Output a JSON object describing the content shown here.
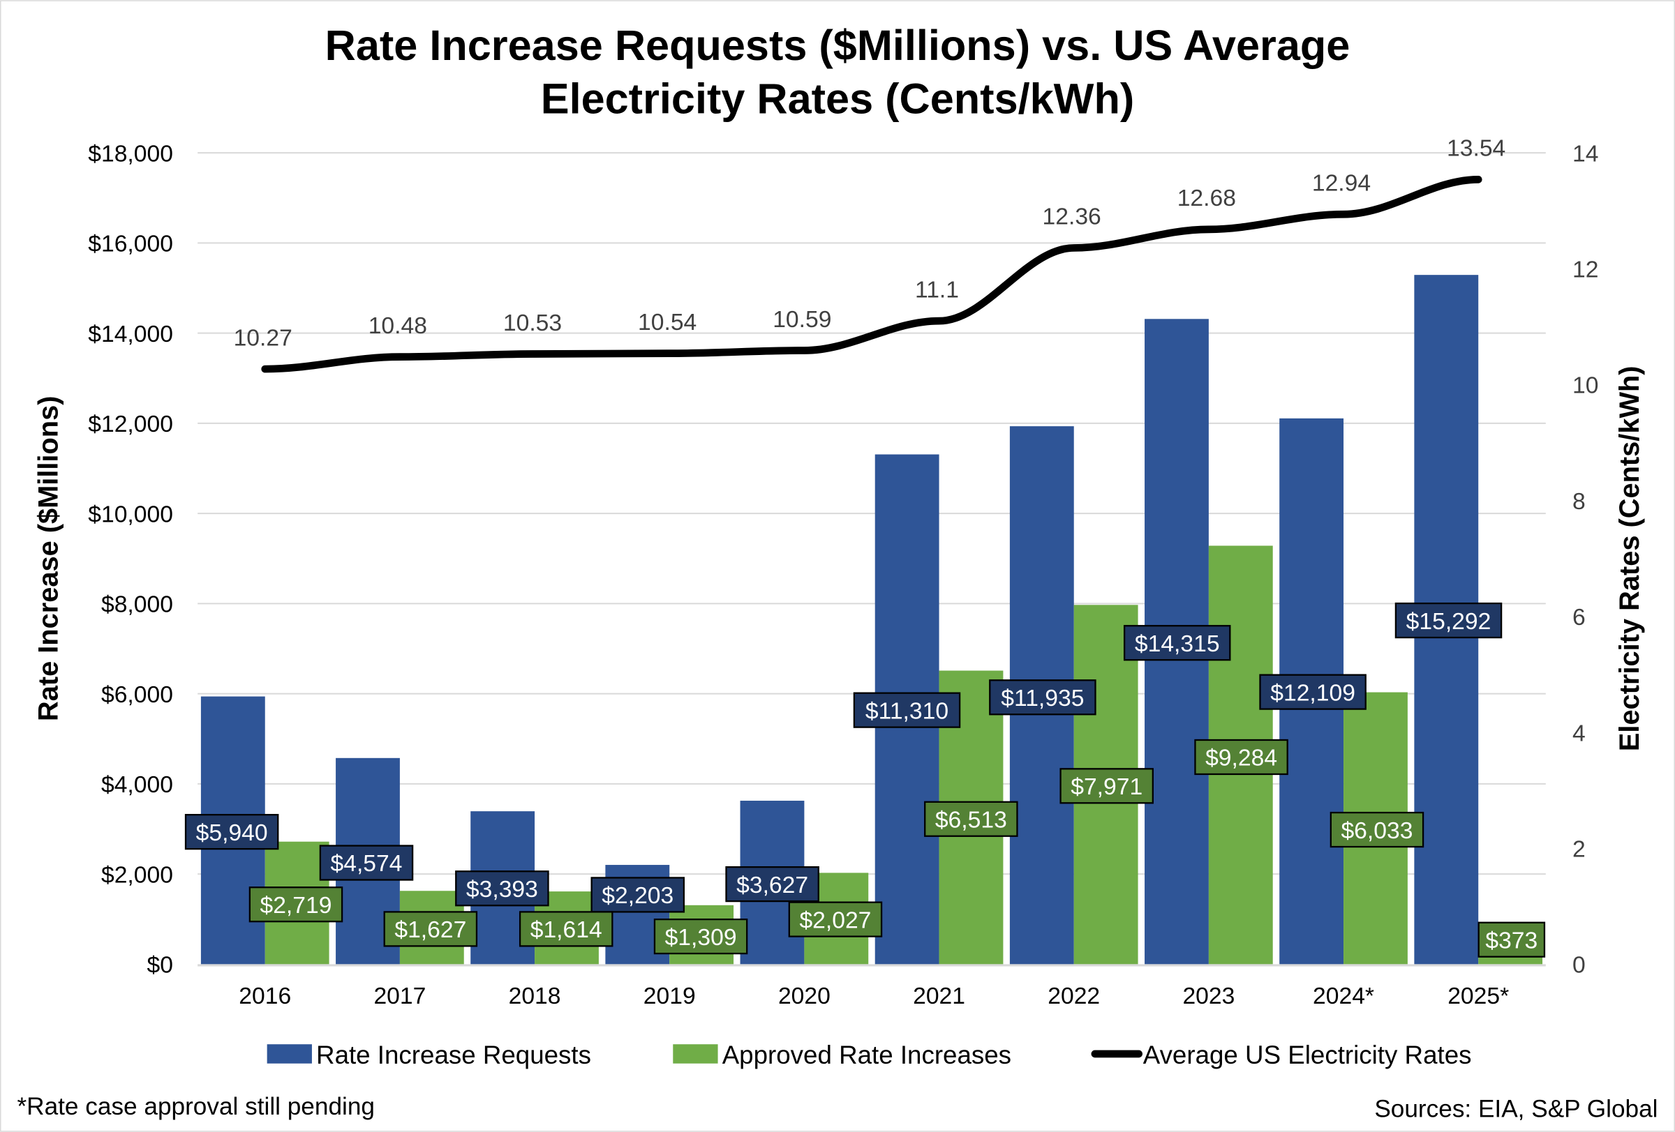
{
  "chart_data": {
    "type": "bar",
    "title_lines": [
      "Rate Increase Requests ($Millions) vs. US Average",
      "Electricity Rates (Cents/kWh)"
    ],
    "categories": [
      "2016",
      "2017",
      "2018",
      "2019",
      "2020",
      "2021",
      "2022",
      "2023",
      "2024*",
      "2025*"
    ],
    "series": [
      {
        "name": "Rate Increase Requests",
        "type": "bar",
        "axis": "left",
        "color": "#2F5597",
        "values": [
          5940,
          4574,
          3393,
          2203,
          3627,
          11310,
          11935,
          14315,
          12109,
          15292
        ],
        "labels": [
          "$5,940",
          "$4,574",
          "$3,393",
          "$2,203",
          "$3,627",
          "$11,310",
          "$11,935",
          "$14,315",
          "$12,109",
          "$15,292"
        ],
        "label_color": "#203864"
      },
      {
        "name": "Approved Rate Increases",
        "type": "bar",
        "axis": "left",
        "color": "#70AD47",
        "values": [
          2719,
          1627,
          1614,
          1309,
          2027,
          6513,
          7971,
          9284,
          6033,
          373
        ],
        "labels": [
          "$2,719",
          "$1,627",
          "$1,614",
          "$1,309",
          "$2,027",
          "$6,513",
          "$7,971",
          "$9,284",
          "$6,033",
          "$373"
        ],
        "label_color": "#548235"
      },
      {
        "name": "Average US Electricity Rates",
        "type": "line",
        "axis": "right",
        "color": "#000000",
        "values": [
          10.27,
          10.48,
          10.53,
          10.54,
          10.59,
          11.1,
          12.36,
          12.68,
          12.94,
          13.54
        ],
        "labels": [
          "10.27",
          "10.48",
          "10.53",
          "10.54",
          "10.59",
          "11.1",
          "12.36",
          "12.68",
          "12.94",
          "13.54"
        ]
      }
    ],
    "ylabel": "Rate Increase ($Millions)",
    "ylim": [
      0,
      18000
    ],
    "yticks": [
      "$0",
      "$2,000",
      "$4,000",
      "$6,000",
      "$8,000",
      "$10,000",
      "$12,000",
      "$14,000",
      "$16,000",
      "$18,000"
    ],
    "y2label": "Electricity Rates (Cents/kWh)",
    "y2lim": [
      0,
      14
    ],
    "y2ticks": [
      "0",
      "2",
      "4",
      "6",
      "8",
      "10",
      "12",
      "14"
    ],
    "grid": true,
    "legend_position": "bottom",
    "footnote": "*Rate case approval still pending",
    "source": "Sources: EIA, S&P Global"
  }
}
